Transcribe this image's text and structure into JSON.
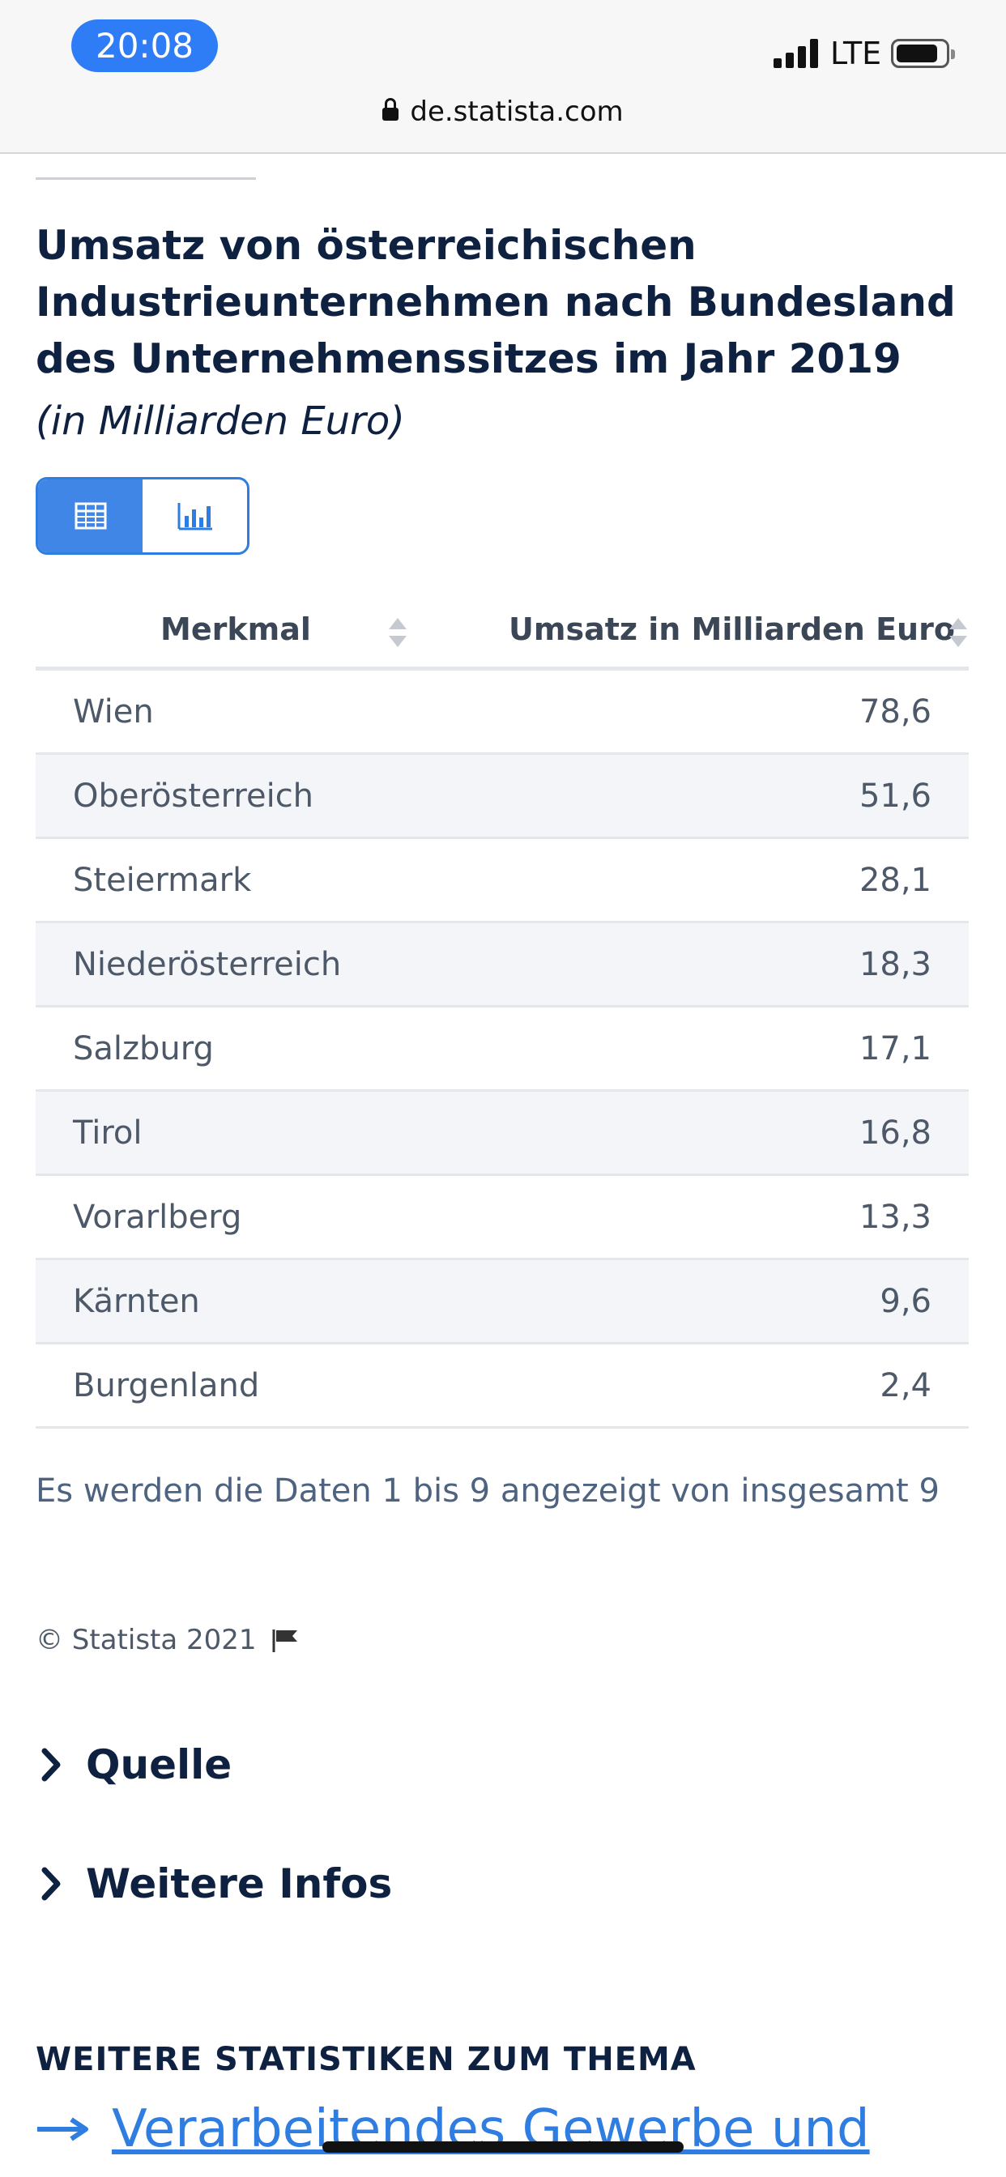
{
  "status_bar": {
    "time": "20:08",
    "network": "LTE",
    "icons": [
      "signal-icon",
      "battery-icon"
    ]
  },
  "browser": {
    "url": "de.statista.com",
    "icons": [
      "lock-icon"
    ]
  },
  "statistic": {
    "title": "Umsatz von österreichischen Industrieunternehmen nach Bundesland des Unternehmenssitzes im Jahr 2019",
    "subtitle": "(in Milliarden Euro)",
    "view_toggle": {
      "options": [
        "table-view-icon",
        "chart-view-icon"
      ],
      "active": "table-view-icon"
    },
    "table": {
      "columns": [
        "Merkmal",
        "Umsatz in Milliarden Euro"
      ],
      "rows": [
        {
          "label": "Wien",
          "value": "78,6"
        },
        {
          "label": "Oberösterreich",
          "value": "51,6"
        },
        {
          "label": "Steiermark",
          "value": "28,1"
        },
        {
          "label": "Niederösterreich",
          "value": "18,3"
        },
        {
          "label": "Salzburg",
          "value": "17,1"
        },
        {
          "label": "Tirol",
          "value": "16,8"
        },
        {
          "label": "Vorarlberg",
          "value": "13,3"
        },
        {
          "label": "Kärnten",
          "value": "9,6"
        },
        {
          "label": "Burgenland",
          "value": "2,4"
        }
      ]
    },
    "info_text": "Es werden die Daten 1 bis 9 angezeigt von insgesamt 9",
    "copyright": "© Statista 2021"
  },
  "accordions": [
    {
      "label": "Quelle"
    },
    {
      "label": "Weitere Infos"
    }
  ],
  "related": {
    "heading": "WEITERE STATISTIKEN ZUM THEMA",
    "link_text": "Verarbeitendes Gewerbe und"
  },
  "colors": {
    "accent": "#2f7de1",
    "title": "#0f2141",
    "row_alt": "#f3f5f8",
    "time_pill": "#2f7df6"
  }
}
